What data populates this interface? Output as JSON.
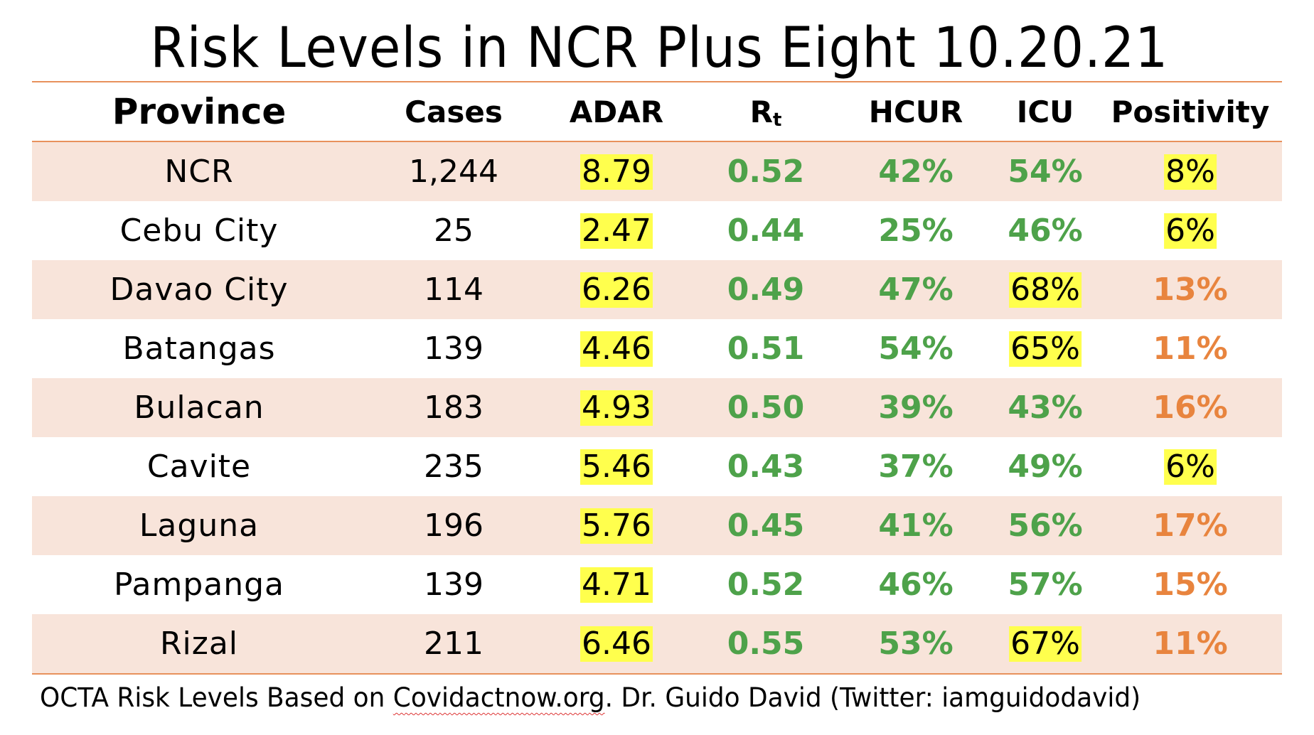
{
  "title": "Risk Levels in NCR Plus Eight 10.20.21",
  "headers": {
    "province": "Province",
    "cases": "Cases",
    "adar": "ADAR",
    "rt_main": "R",
    "rt_sub": "t",
    "hcur": "HCUR",
    "icu": "ICU",
    "positivity": "Positivity"
  },
  "rows": [
    {
      "province": "NCR",
      "cases": "1,244",
      "adar": "8.79",
      "rt": "0.52",
      "hcur": "42%",
      "icu": "54%",
      "positivity": "8%"
    },
    {
      "province": "Cebu City",
      "cases": "25",
      "adar": "2.47",
      "rt": "0.44",
      "hcur": "25%",
      "icu": "46%",
      "positivity": "6%"
    },
    {
      "province": "Davao City",
      "cases": "114",
      "adar": "6.26",
      "rt": "0.49",
      "hcur": "47%",
      "icu": "68%",
      "positivity": "13%"
    },
    {
      "province": "Batangas",
      "cases": "139",
      "adar": "4.46",
      "rt": "0.51",
      "hcur": "54%",
      "icu": "65%",
      "positivity": "11%"
    },
    {
      "province": "Bulacan",
      "cases": "183",
      "adar": "4.93",
      "rt": "0.50",
      "hcur": "39%",
      "icu": "43%",
      "positivity": "16%"
    },
    {
      "province": "Cavite",
      "cases": "235",
      "adar": "5.46",
      "rt": "0.43",
      "hcur": "37%",
      "icu": "49%",
      "positivity": "6%"
    },
    {
      "province": "Laguna",
      "cases": "196",
      "adar": "5.76",
      "rt": "0.45",
      "hcur": "41%",
      "icu": "56%",
      "positivity": "17%"
    },
    {
      "province": "Pampanga",
      "cases": "139",
      "adar": "4.71",
      "rt": "0.52",
      "hcur": "46%",
      "icu": "57%",
      "positivity": "15%"
    },
    {
      "province": "Rizal",
      "cases": "211",
      "adar": "6.46",
      "rt": "0.55",
      "hcur": "53%",
      "icu": "67%",
      "positivity": "11%"
    }
  ],
  "footer": {
    "prefix": "OCTA Risk Levels Based on ",
    "link": "Covidactnow.org",
    "suffix": ". Dr. Guido David (Twitter: iamguidodavid)"
  }
}
